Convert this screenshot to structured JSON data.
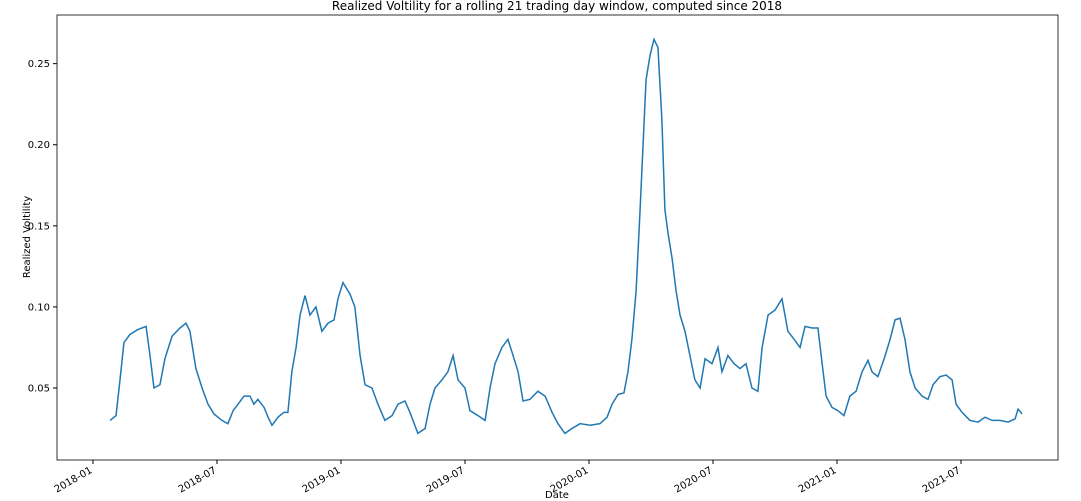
{
  "chart_data": {
    "type": "line",
    "title": "Realized Voltility for a rolling 21 trading day window, computed since 2018",
    "xlabel": "Date",
    "ylabel": "Realized Voltility",
    "x": [
      2018.069,
      2018.093,
      2018.109,
      2018.125,
      2018.149,
      2018.181,
      2018.214,
      2018.23,
      2018.246,
      2018.27,
      2018.29,
      2018.319,
      2018.351,
      2018.375,
      2018.391,
      2018.415,
      2018.44,
      2018.464,
      2018.488,
      2018.52,
      2018.544,
      2018.565,
      2018.585,
      2018.609,
      2018.633,
      2018.649,
      2018.665,
      2018.69,
      2018.706,
      2018.722,
      2018.746,
      2018.77,
      2018.786,
      2018.802,
      2018.819,
      2018.835,
      2018.855,
      2018.875,
      2018.899,
      2018.923,
      2018.948,
      2018.972,
      2018.988,
      2019.008,
      2019.036,
      2019.056,
      2019.077,
      2019.097,
      2019.125,
      2019.149,
      2019.177,
      2019.206,
      2019.23,
      2019.258,
      2019.278,
      2019.31,
      2019.339,
      2019.359,
      2019.379,
      2019.407,
      2019.431,
      2019.452,
      2019.472,
      2019.5,
      2019.52,
      2019.552,
      2019.581,
      2019.601,
      2019.621,
      2019.649,
      2019.673,
      2019.694,
      2019.714,
      2019.734,
      2019.762,
      2019.794,
      2019.823,
      2019.851,
      2019.875,
      2019.903,
      2019.931,
      2019.964,
      2020.004,
      2020.044,
      2020.073,
      2020.093,
      2020.117,
      2020.141,
      2020.157,
      2020.173,
      2020.19,
      2020.206,
      2020.218,
      2020.23,
      2020.246,
      2020.262,
      2020.278,
      2020.294,
      2020.306,
      2020.319,
      2020.335,
      2020.351,
      2020.367,
      2020.387,
      2020.407,
      2020.427,
      2020.448,
      2020.468,
      2020.496,
      2020.52,
      2020.536,
      2020.56,
      2020.585,
      2020.609,
      2020.633,
      2020.657,
      2020.681,
      2020.698,
      2020.722,
      2020.75,
      2020.778,
      2020.802,
      2020.827,
      2020.851,
      2020.871,
      2020.899,
      2020.923,
      2020.94,
      2020.956,
      2020.98,
      2021.004,
      2021.028,
      2021.052,
      2021.077,
      2021.101,
      2021.125,
      2021.141,
      2021.165,
      2021.19,
      2021.214,
      2021.234,
      2021.254,
      2021.274,
      2021.294,
      2021.315,
      2021.343,
      2021.367,
      2021.387,
      2021.415,
      2021.44,
      2021.464,
      2021.48,
      2021.504,
      2021.536,
      2021.569,
      2021.597,
      2021.625,
      2021.657,
      2021.69,
      2021.718,
      2021.73,
      2021.746
    ],
    "series": [
      {
        "name": "Realized Voltility",
        "color": "#1f77b4",
        "values": [
          0.03,
          0.033,
          0.055,
          0.078,
          0.083,
          0.086,
          0.088,
          0.07,
          0.05,
          0.052,
          0.068,
          0.082,
          0.087,
          0.09,
          0.085,
          0.062,
          0.05,
          0.04,
          0.034,
          0.03,
          0.028,
          0.036,
          0.04,
          0.045,
          0.045,
          0.04,
          0.043,
          0.038,
          0.032,
          0.027,
          0.032,
          0.035,
          0.035,
          0.06,
          0.075,
          0.095,
          0.107,
          0.095,
          0.1,
          0.085,
          0.09,
          0.092,
          0.105,
          0.115,
          0.108,
          0.1,
          0.07,
          0.052,
          0.05,
          0.04,
          0.03,
          0.033,
          0.04,
          0.042,
          0.035,
          0.022,
          0.025,
          0.04,
          0.05,
          0.055,
          0.06,
          0.07,
          0.055,
          0.05,
          0.036,
          0.033,
          0.03,
          0.05,
          0.065,
          0.075,
          0.08,
          0.07,
          0.06,
          0.042,
          0.043,
          0.048,
          0.045,
          0.035,
          0.028,
          0.022,
          0.025,
          0.028,
          0.027,
          0.028,
          0.032,
          0.04,
          0.046,
          0.047,
          0.06,
          0.08,
          0.11,
          0.16,
          0.2,
          0.24,
          0.255,
          0.265,
          0.26,
          0.215,
          0.16,
          0.145,
          0.13,
          0.11,
          0.095,
          0.085,
          0.07,
          0.055,
          0.05,
          0.068,
          0.065,
          0.075,
          0.06,
          0.07,
          0.065,
          0.062,
          0.065,
          0.05,
          0.048,
          0.075,
          0.095,
          0.098,
          0.105,
          0.085,
          0.08,
          0.075,
          0.088,
          0.087,
          0.087,
          0.065,
          0.045,
          0.038,
          0.036,
          0.033,
          0.045,
          0.048,
          0.06,
          0.067,
          0.06,
          0.057,
          0.068,
          0.08,
          0.092,
          0.093,
          0.08,
          0.06,
          0.05,
          0.045,
          0.043,
          0.052,
          0.057,
          0.058,
          0.055,
          0.04,
          0.035,
          0.03,
          0.029,
          0.032,
          0.03,
          0.03,
          0.029,
          0.031,
          0.037,
          0.034
        ]
      }
    ],
    "xlim": [
      2017.855,
      2021.891
    ],
    "xticks": [
      {
        "value": 2018.0,
        "label": "2018-01"
      },
      {
        "value": 2018.5,
        "label": "2018-07"
      },
      {
        "value": 2019.0,
        "label": "2019-01"
      },
      {
        "value": 2019.5,
        "label": "2019-07"
      },
      {
        "value": 2020.0,
        "label": "2020-01"
      },
      {
        "value": 2020.5,
        "label": "2020-07"
      },
      {
        "value": 2021.0,
        "label": "2021-01"
      },
      {
        "value": 2021.5,
        "label": "2021-07"
      }
    ],
    "ylim": [
      0.0056,
      0.28
    ],
    "yticks": [
      0.05,
      {
        "value": 0.1,
        "label": "0.10"
      },
      0.15,
      {
        "value": 0.2,
        "label": "0.20"
      },
      0.25
    ],
    "grid": false
  }
}
